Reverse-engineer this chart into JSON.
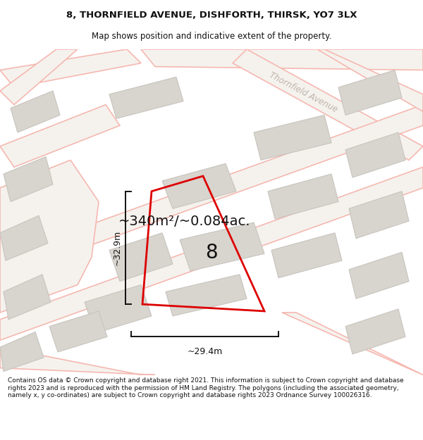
{
  "title_line1": "8, THORNFIELD AVENUE, DISHFORTH, THIRSK, YO7 3LX",
  "title_line2": "Map shows position and indicative extent of the property.",
  "area_text": "~340m²/~0.084ac.",
  "plot_number": "8",
  "dim_width": "~29.4m",
  "dim_height": "~32.9m",
  "footer_text": "Contains OS data © Crown copyright and database right 2021. This information is subject to Crown copyright and database rights 2023 and is reproduced with the permission of HM Land Registry. The polygons (including the associated geometry, namely x, y co-ordinates) are subject to Crown copyright and database rights 2023 Ordnance Survey 100026316.",
  "bg_color": "#f2f0ed",
  "map_bg": "#f2f0ed",
  "street_label": "Thornfield Avenue",
  "plot_color": "#dd0000",
  "plot_fill": "none",
  "road_outline_color": "#f5b8b0",
  "road_fill_color": "#f5f0ec",
  "building_color": "#d8d4ce",
  "building_edge_color": "#c8c4be",
  "text_color": "#111111",
  "footer_color": "#111111",
  "map_ylim": [
    0,
    470
  ],
  "map_xlim": [
    0,
    600
  ],
  "title_fontsize": 9.5,
  "subtitle_fontsize": 8.5,
  "area_fontsize": 14,
  "plot_number_fontsize": 20,
  "dim_fontsize": 9,
  "footer_fontsize": 6.5
}
